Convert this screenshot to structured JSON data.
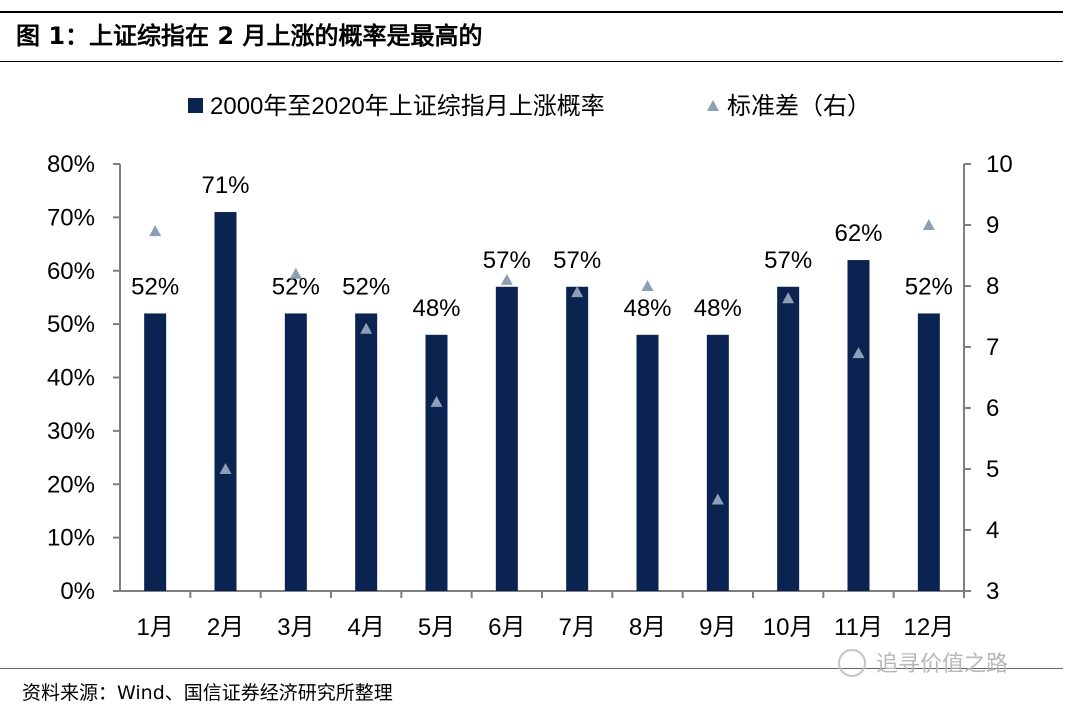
{
  "header": {
    "title": "图 1：上证综指在 2 月上涨的概率是最高的"
  },
  "footer": {
    "source": "资料来源：Wind、国信证券经济研究所整理",
    "watermark": "追寻价值之路"
  },
  "colors": {
    "bar": "#0b2350",
    "marker": "#8d9fb6",
    "axis": "#7f7f7f"
  },
  "chart_data": {
    "type": "bar",
    "categories": [
      "1月",
      "2月",
      "3月",
      "4月",
      "5月",
      "6月",
      "7月",
      "8月",
      "9月",
      "10月",
      "11月",
      "12月"
    ],
    "series": [
      {
        "name": "2000年至2020年上证综指月上涨概率",
        "type": "bar",
        "axis": "left",
        "values": [
          0.52,
          0.71,
          0.52,
          0.52,
          0.48,
          0.57,
          0.57,
          0.48,
          0.48,
          0.57,
          0.62,
          0.52
        ],
        "labels": [
          "52%",
          "71%",
          "52%",
          "52%",
          "48%",
          "57%",
          "57%",
          "48%",
          "48%",
          "57%",
          "62%",
          "52%"
        ]
      },
      {
        "name": "标准差（右）",
        "type": "scatter",
        "marker": "triangle",
        "axis": "right",
        "values": [
          8.9,
          5.0,
          8.2,
          7.3,
          6.1,
          8.1,
          7.9,
          8.0,
          4.5,
          7.8,
          6.9,
          9.0
        ]
      }
    ],
    "y_left": {
      "min": 0,
      "max": 0.8,
      "ticks": [
        "0%",
        "10%",
        "20%",
        "30%",
        "40%",
        "50%",
        "60%",
        "70%",
        "80%"
      ]
    },
    "y_right": {
      "min": 3,
      "max": 10,
      "ticks": [
        "3",
        "4",
        "5",
        "6",
        "7",
        "8",
        "9",
        "10"
      ]
    },
    "legend": "top-center",
    "grid": false
  }
}
